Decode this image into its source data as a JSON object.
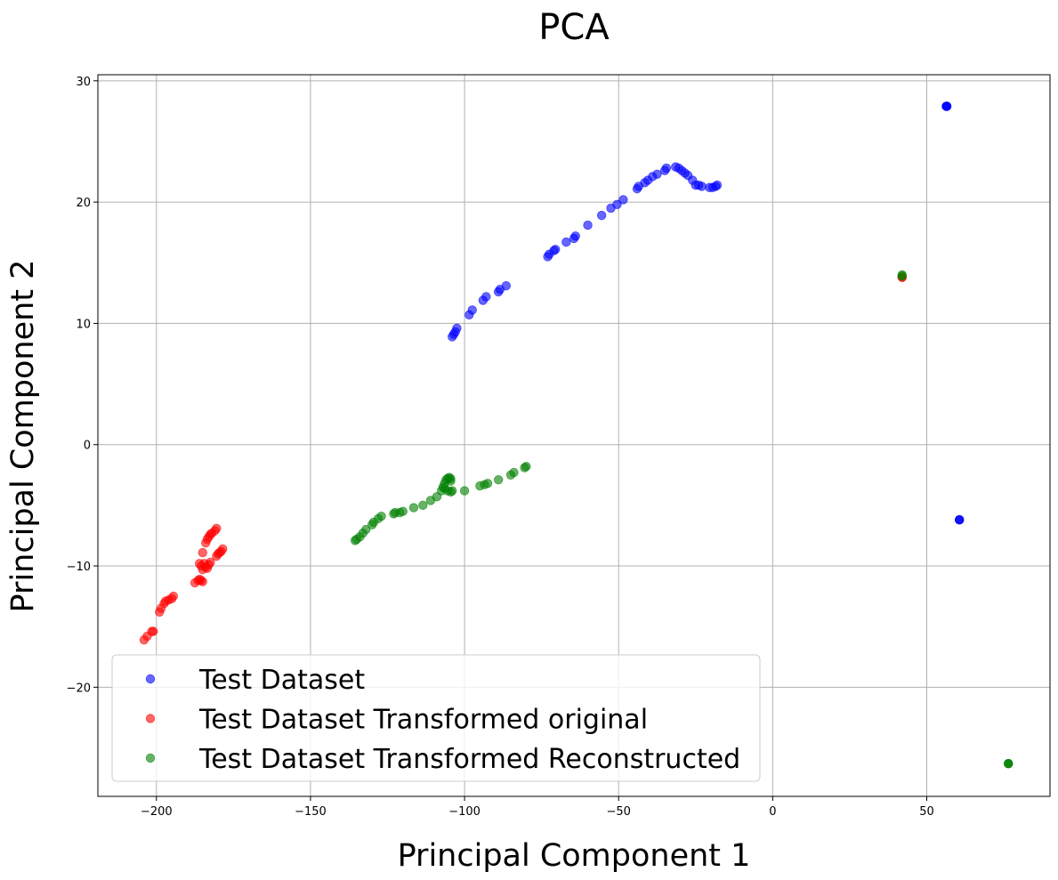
{
  "chart_data": {
    "type": "scatter",
    "title": "PCA",
    "xlabel": "Principal Component 1",
    "ylabel": "Principal Component 2",
    "xlim": [
      -219,
      90
    ],
    "ylim": [
      -29,
      30.5
    ],
    "xticks": [
      -200,
      -150,
      -100,
      -50,
      0,
      50
    ],
    "yticks": [
      -20,
      -10,
      0,
      10,
      20,
      30
    ],
    "xtick_labels": [
      "−200",
      "−150",
      "−100",
      "−50",
      "0",
      "50"
    ],
    "ytick_labels": [
      "−20",
      "−10",
      "0",
      "10",
      "20",
      "30"
    ],
    "grid": true,
    "legend_position": "lower-left",
    "series": [
      {
        "name": "Test Dataset",
        "color": "#0000ff",
        "alpha": 0.6,
        "points": [
          [
            56.5,
            27.9
          ],
          [
            56.5,
            27.9
          ],
          [
            56.5,
            27.9
          ],
          [
            56.3,
            27.9
          ],
          [
            60.6,
            -6.2
          ],
          [
            60.6,
            -6.2
          ],
          [
            60.6,
            -6.2
          ],
          [
            -104,
            8.9
          ],
          [
            -103.5,
            9.1
          ],
          [
            -103,
            9.3
          ],
          [
            -102.5,
            9.6
          ],
          [
            -98.5,
            10.7
          ],
          [
            -97.5,
            11.1
          ],
          [
            -94,
            11.9
          ],
          [
            -93,
            12.2
          ],
          [
            -89,
            12.6
          ],
          [
            -88.5,
            12.8
          ],
          [
            -86.5,
            13.1
          ],
          [
            -73,
            15.5
          ],
          [
            -72.5,
            15.7
          ],
          [
            -71,
            16.0
          ],
          [
            -70.5,
            16.1
          ],
          [
            -67,
            16.7
          ],
          [
            -64.5,
            17.0
          ],
          [
            -64,
            17.2
          ],
          [
            -60,
            18.1
          ],
          [
            -55.5,
            18.9
          ],
          [
            -52.5,
            19.5
          ],
          [
            -50.5,
            19.8
          ],
          [
            -48.5,
            20.2
          ],
          [
            -44,
            21.1
          ],
          [
            -43.5,
            21.3
          ],
          [
            -41.5,
            21.6
          ],
          [
            -40.5,
            21.8
          ],
          [
            -39,
            22.1
          ],
          [
            -37.5,
            22.3
          ],
          [
            -35,
            22.6
          ],
          [
            -34.5,
            22.8
          ],
          [
            -31.5,
            22.9
          ],
          [
            -30.5,
            22.8
          ],
          [
            -29.5,
            22.6
          ],
          [
            -28.5,
            22.4
          ],
          [
            -27.5,
            22.2
          ],
          [
            -26,
            21.8
          ],
          [
            -25,
            21.4
          ],
          [
            -24,
            21.4
          ],
          [
            -23,
            21.3
          ],
          [
            -20.5,
            21.2
          ],
          [
            -19.5,
            21.2
          ],
          [
            -18.5,
            21.3
          ],
          [
            -18,
            21.4
          ]
        ]
      },
      {
        "name": "Test Dataset Transformed original",
        "color": "#ff0000",
        "alpha": 0.6,
        "points": [
          [
            42,
            13.8
          ],
          [
            42,
            13.8
          ],
          [
            -204,
            -16.1
          ],
          [
            -203,
            -15.8
          ],
          [
            -201.5,
            -15.4
          ],
          [
            -201,
            -15.4
          ],
          [
            -199,
            -13.8
          ],
          [
            -198.5,
            -13.5
          ],
          [
            -197.5,
            -13.1
          ],
          [
            -197,
            -12.9
          ],
          [
            -196,
            -12.8
          ],
          [
            -195,
            -12.7
          ],
          [
            -194.5,
            -12.5
          ],
          [
            -187.5,
            -11.4
          ],
          [
            -186.5,
            -11.2
          ],
          [
            -186,
            -11.1
          ],
          [
            -185.5,
            -11.2
          ],
          [
            -185,
            -11.3
          ],
          [
            -186,
            -9.8
          ],
          [
            -185.5,
            -10.0
          ],
          [
            -185,
            -10.3
          ],
          [
            -184.5,
            -9.8
          ],
          [
            -184,
            -10.1
          ],
          [
            -183.5,
            -10.2
          ],
          [
            -183,
            -9.9
          ],
          [
            -182.5,
            -9.7
          ],
          [
            -185,
            -8.9
          ],
          [
            -184,
            -8.1
          ],
          [
            -183.5,
            -7.8
          ],
          [
            -183,
            -7.6
          ],
          [
            -182.5,
            -7.4
          ],
          [
            -182,
            -7.3
          ],
          [
            -181,
            -7.1
          ],
          [
            -180.5,
            -6.9
          ],
          [
            -180.5,
            -9.2
          ],
          [
            -180,
            -9.0
          ],
          [
            -179.5,
            -8.9
          ],
          [
            -179,
            -8.8
          ],
          [
            -178.5,
            -8.6
          ]
        ]
      },
      {
        "name": "Test Dataset Transformed Reconstructed",
        "color": "#008000",
        "alpha": 0.6,
        "points": [
          [
            42,
            13.9
          ],
          [
            42,
            14.0
          ],
          [
            76.5,
            -26.3
          ],
          [
            76.5,
            -26.3
          ],
          [
            76.5,
            -26.3
          ],
          [
            -135.5,
            -7.9
          ],
          [
            -135,
            -7.8
          ],
          [
            -134,
            -7.6
          ],
          [
            -133,
            -7.3
          ],
          [
            -132,
            -7.0
          ],
          [
            -130,
            -6.6
          ],
          [
            -129.5,
            -6.4
          ],
          [
            -128,
            -6.1
          ],
          [
            -127,
            -5.9
          ],
          [
            -123,
            -5.7
          ],
          [
            -122.5,
            -5.6
          ],
          [
            -121,
            -5.6
          ],
          [
            -120,
            -5.5
          ],
          [
            -116.5,
            -5.2
          ],
          [
            -113.5,
            -5.0
          ],
          [
            -111,
            -4.6
          ],
          [
            -109,
            -4.3
          ],
          [
            -107.5,
            -3.8
          ],
          [
            -107,
            -3.5
          ],
          [
            -106.5,
            -3.2
          ],
          [
            -106,
            -2.9
          ],
          [
            -105.5,
            -2.8
          ],
          [
            -105,
            -2.7
          ],
          [
            -104.5,
            -2.8
          ],
          [
            -104.5,
            -3.0
          ],
          [
            -106.5,
            -3.6
          ],
          [
            -105.5,
            -3.8
          ],
          [
            -104.5,
            -3.9
          ],
          [
            -104,
            -3.8
          ],
          [
            -100,
            -3.8
          ],
          [
            -95,
            -3.4
          ],
          [
            -93.5,
            -3.3
          ],
          [
            -92.5,
            -3.2
          ],
          [
            -89,
            -2.9
          ],
          [
            -85,
            -2.5
          ],
          [
            -84,
            -2.3
          ],
          [
            -80.5,
            -1.9
          ],
          [
            -80,
            -1.8
          ]
        ]
      }
    ]
  }
}
